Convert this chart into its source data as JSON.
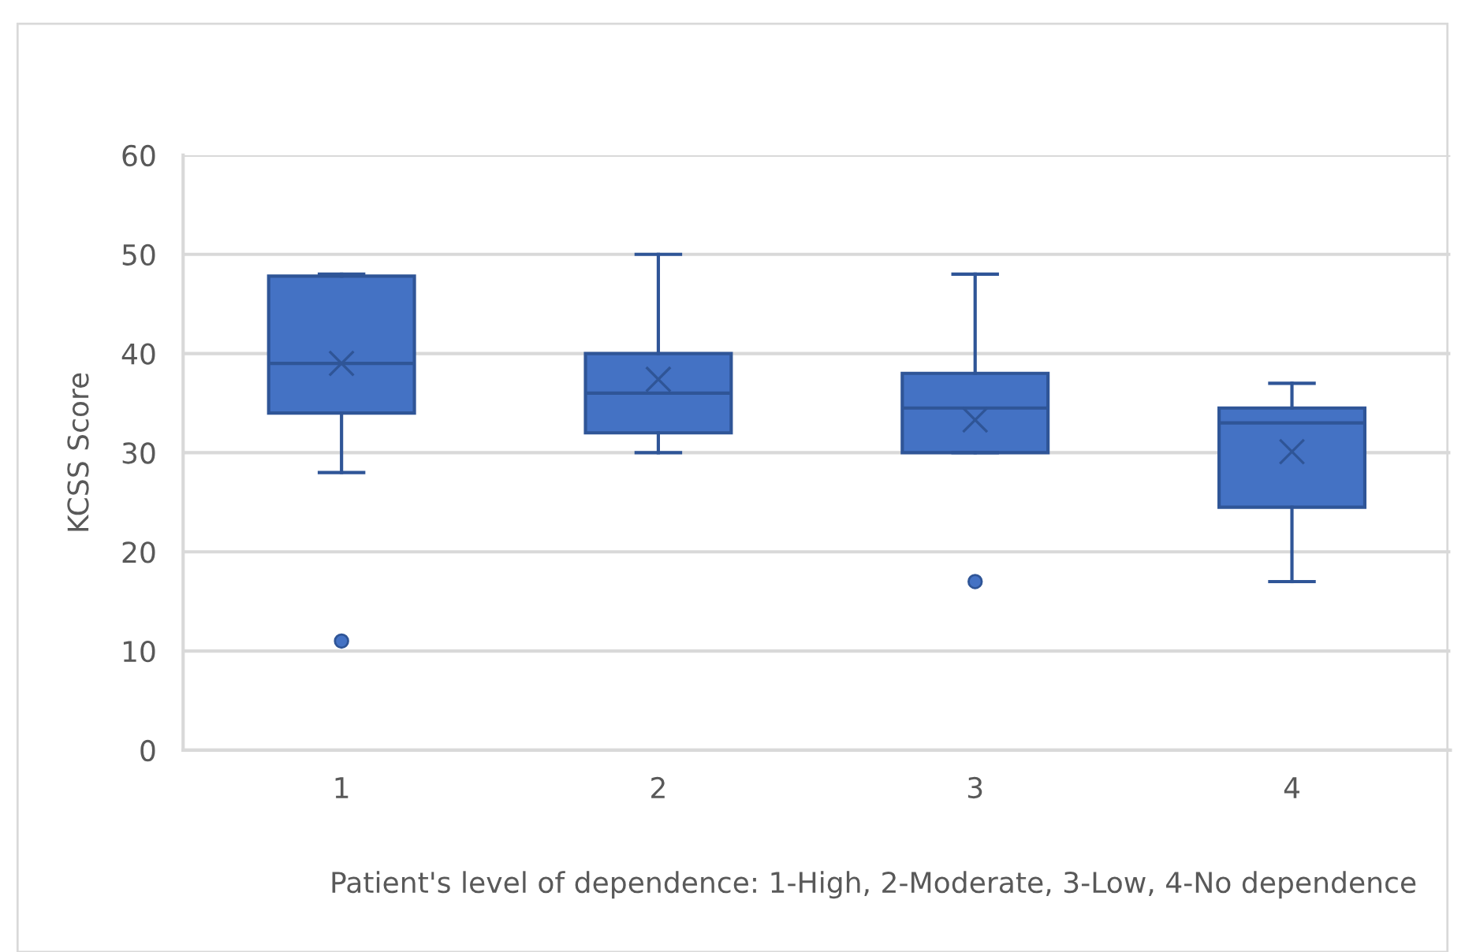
{
  "chart_data": {
    "type": "box",
    "xlabel": "Patient's level of dependence: 1-High, 2-Moderate, 3-Low, 4-No dependence",
    "ylabel": "KCSS Score",
    "categories": [
      "1",
      "2",
      "3",
      "4"
    ],
    "color": "#4472c4",
    "boxes": [
      {
        "low": 28,
        "q1": 34,
        "median": 39,
        "q3": 47.8,
        "high": 48,
        "mean": 39,
        "outliers": [
          11
        ]
      },
      {
        "low": 30,
        "q1": 32,
        "median": 36,
        "q3": 40,
        "high": 50,
        "mean": 37.4
      },
      {
        "low": 30,
        "q1": 30,
        "median": 34.5,
        "q3": 38,
        "high": 48,
        "mean": 33.3,
        "outliers": [
          17
        ]
      },
      {
        "low": 17,
        "q1": 24.5,
        "median": 33,
        "q3": 34.5,
        "high": 37,
        "mean": 30.1
      }
    ],
    "ylim": [
      0,
      60
    ],
    "yticks": [
      0,
      10,
      20,
      30,
      40,
      50,
      60
    ],
    "grid": "y"
  }
}
